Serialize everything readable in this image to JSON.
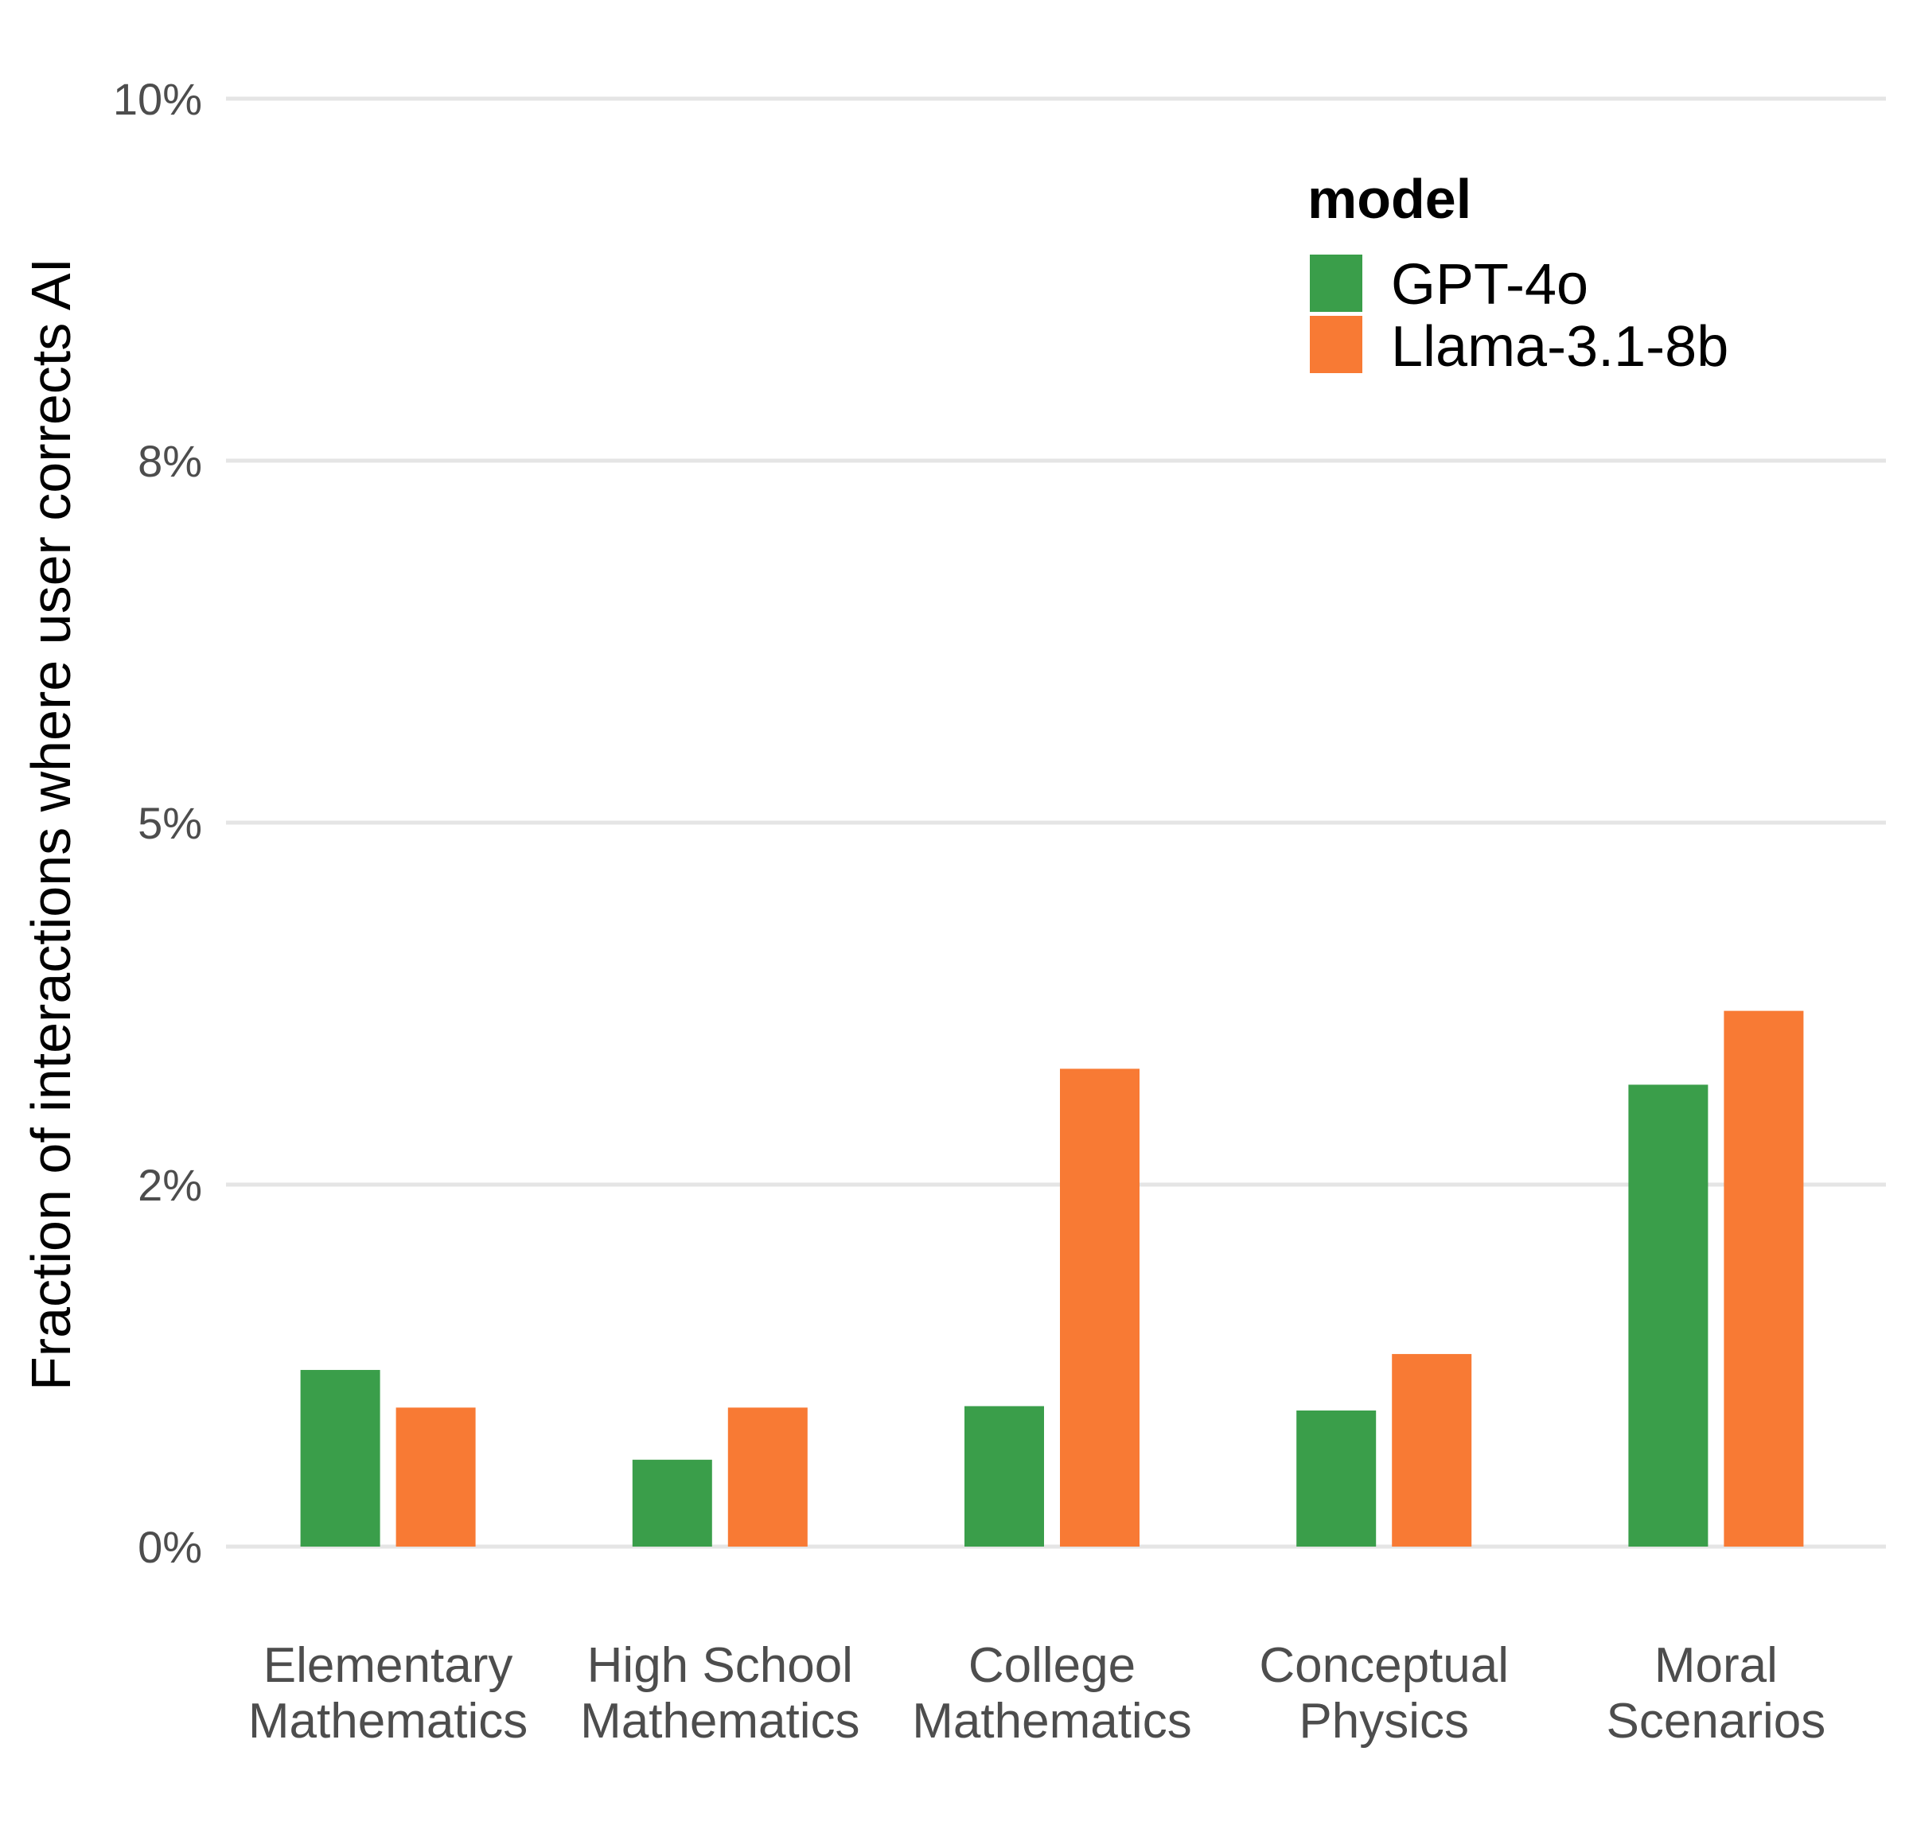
{
  "chart_data": {
    "type": "bar",
    "title": "",
    "xlabel": "",
    "ylabel": "Fraction of interactions where user corrects AI",
    "ylim": [
      0,
      0.1
    ],
    "yticks": [
      0,
      0.025,
      0.05,
      0.075,
      0.1
    ],
    "ytick_labels": [
      "0%",
      "2%",
      "5%",
      "8%",
      "10%"
    ],
    "categories": [
      [
        "Elementary",
        "Mathematics"
      ],
      [
        "High School",
        "Mathematics"
      ],
      [
        "College",
        "Mathematics"
      ],
      [
        "Conceptual",
        "Physics"
      ],
      [
        "Moral",
        "Scenarios"
      ]
    ],
    "series": [
      {
        "name": "GPT-4o",
        "color": "#3a9e4a",
        "values": [
          0.0122,
          0.006,
          0.0097,
          0.0094,
          0.0319
        ]
      },
      {
        "name": "Llama-3.1-8b",
        "color": "#f87a34",
        "values": [
          0.0096,
          0.0096,
          0.033,
          0.0133,
          0.037
        ]
      }
    ],
    "grid": true,
    "legend": {
      "title": "model",
      "position": "top-right"
    }
  }
}
